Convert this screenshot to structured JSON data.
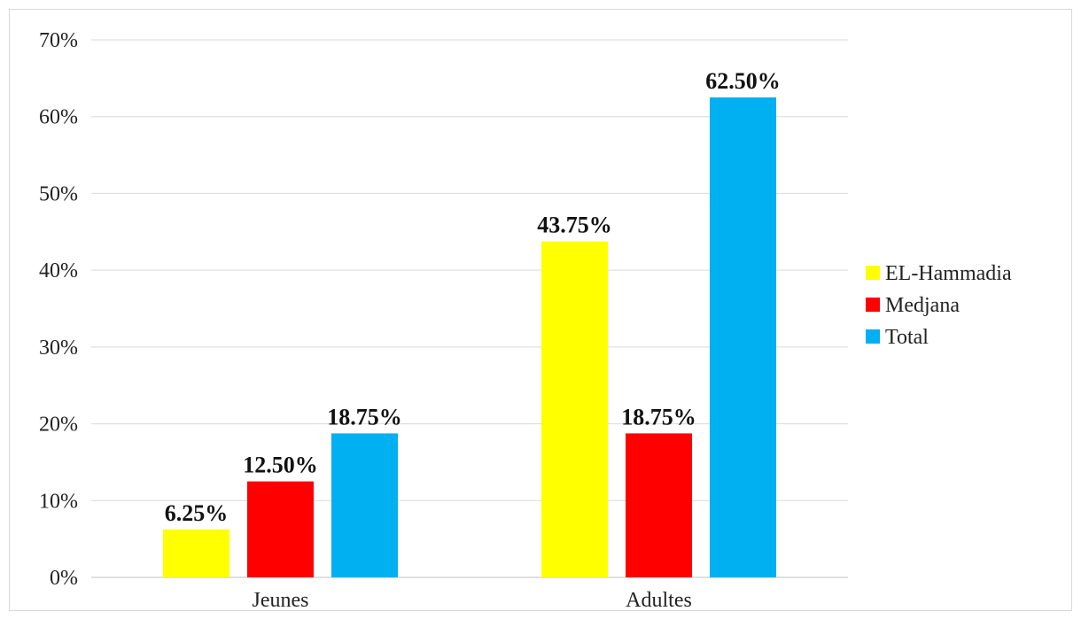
{
  "chart_data": {
    "type": "bar",
    "categories": [
      "Jeunes",
      "Adultes"
    ],
    "series": [
      {
        "name": "EL-Hammadia",
        "color": "#ffff00",
        "values": [
          6.25,
          43.75
        ],
        "labels": [
          "6.25%",
          "43.75%"
        ]
      },
      {
        "name": "Medjana",
        "color": "#ff0000",
        "values": [
          12.5,
          18.75
        ],
        "labels": [
          "12.50%",
          "18.75%"
        ]
      },
      {
        "name": "Total",
        "color": "#00b0f0",
        "values": [
          18.75,
          62.5
        ],
        "labels": [
          "18.75%",
          "62.50%"
        ]
      }
    ],
    "ylim": [
      0,
      70
    ],
    "yticks": [
      0,
      10,
      20,
      30,
      40,
      50,
      60,
      70
    ],
    "ytick_labels": [
      "0%",
      "10%",
      "20%",
      "30%",
      "40%",
      "50%",
      "60%",
      "70%"
    ],
    "grid": true,
    "legend_position": "right",
    "title": "",
    "xlabel": "",
    "ylabel": ""
  }
}
